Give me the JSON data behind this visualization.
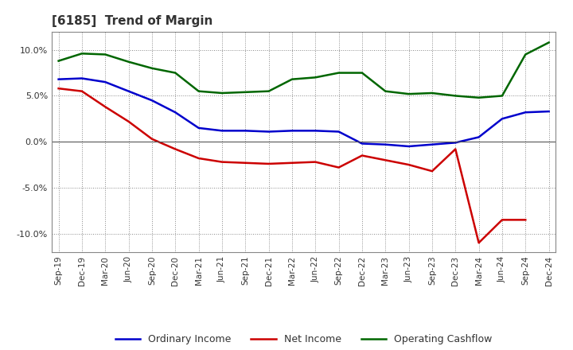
{
  "title": "[6185]  Trend of Margin",
  "x_labels": [
    "Sep-19",
    "Dec-19",
    "Mar-20",
    "Jun-20",
    "Sep-20",
    "Dec-20",
    "Mar-21",
    "Jun-21",
    "Sep-21",
    "Dec-21",
    "Mar-22",
    "Jun-22",
    "Sep-22",
    "Dec-22",
    "Mar-23",
    "Jun-23",
    "Sep-23",
    "Dec-23",
    "Mar-24",
    "Jun-24",
    "Sep-24",
    "Dec-24"
  ],
  "ordinary_income": [
    6.8,
    6.9,
    6.5,
    5.5,
    4.5,
    3.2,
    1.5,
    1.2,
    1.2,
    1.1,
    1.2,
    1.2,
    1.1,
    -0.2,
    -0.3,
    -0.5,
    -0.3,
    -0.1,
    0.5,
    2.5,
    3.2,
    3.3
  ],
  "net_income": [
    5.8,
    5.5,
    3.8,
    2.2,
    0.3,
    -0.8,
    -1.8,
    -2.2,
    -2.3,
    -2.4,
    -2.3,
    -2.2,
    -2.8,
    -1.5,
    -2.0,
    -2.5,
    -3.2,
    -0.8,
    -11.0,
    -8.5,
    -8.5,
    null
  ],
  "operating_cashflow": [
    8.8,
    9.6,
    9.5,
    8.7,
    8.0,
    7.5,
    5.5,
    5.3,
    5.4,
    5.5,
    6.8,
    7.0,
    7.5,
    7.5,
    5.5,
    5.2,
    5.3,
    5.0,
    4.8,
    5.0,
    9.5,
    10.8
  ],
  "ordinary_income_color": "#0000cc",
  "net_income_color": "#cc0000",
  "operating_cashflow_color": "#006600",
  "background_color": "#ffffff",
  "grid_color": "#888888",
  "ylim": [
    -12,
    12
  ],
  "yticks": [
    -10,
    -5,
    0,
    5,
    10
  ],
  "legend_labels": [
    "Ordinary Income",
    "Net Income",
    "Operating Cashflow"
  ],
  "title_fontsize": 11,
  "title_color": "#333333",
  "line_width": 1.8
}
